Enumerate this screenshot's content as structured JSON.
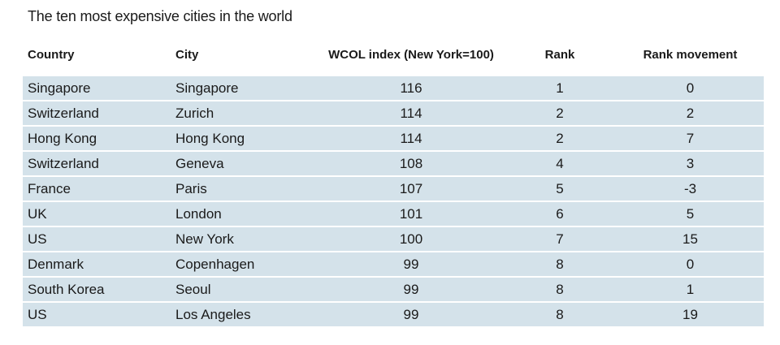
{
  "chart_data": {
    "type": "table",
    "title": "The ten most expensive cities in the world",
    "columns": [
      "Country",
      "City",
      "WCOL index (New York=100)",
      "Rank",
      "Rank movement"
    ],
    "rows": [
      [
        "Singapore",
        "Singapore",
        "116",
        "1",
        "0"
      ],
      [
        "Switzerland",
        "Zurich",
        "114",
        "2",
        "2"
      ],
      [
        "Hong Kong",
        "Hong Kong",
        "114",
        "2",
        "7"
      ],
      [
        "Switzerland",
        "Geneva",
        "108",
        "4",
        "3"
      ],
      [
        "France",
        "Paris",
        "107",
        "5",
        "-3"
      ],
      [
        "UK",
        "London",
        "101",
        "6",
        "5"
      ],
      [
        "US",
        "New York",
        "100",
        "7",
        "15"
      ],
      [
        "Denmark",
        "Copenhagen",
        "99",
        "8",
        "0"
      ],
      [
        "South Korea",
        "Seoul",
        "99",
        "8",
        "1"
      ],
      [
        "US",
        "Los Angeles",
        "99",
        "8",
        "19"
      ]
    ],
    "colors": {
      "row_background": "#d4e2ea",
      "text": "#1a1a1a"
    }
  }
}
